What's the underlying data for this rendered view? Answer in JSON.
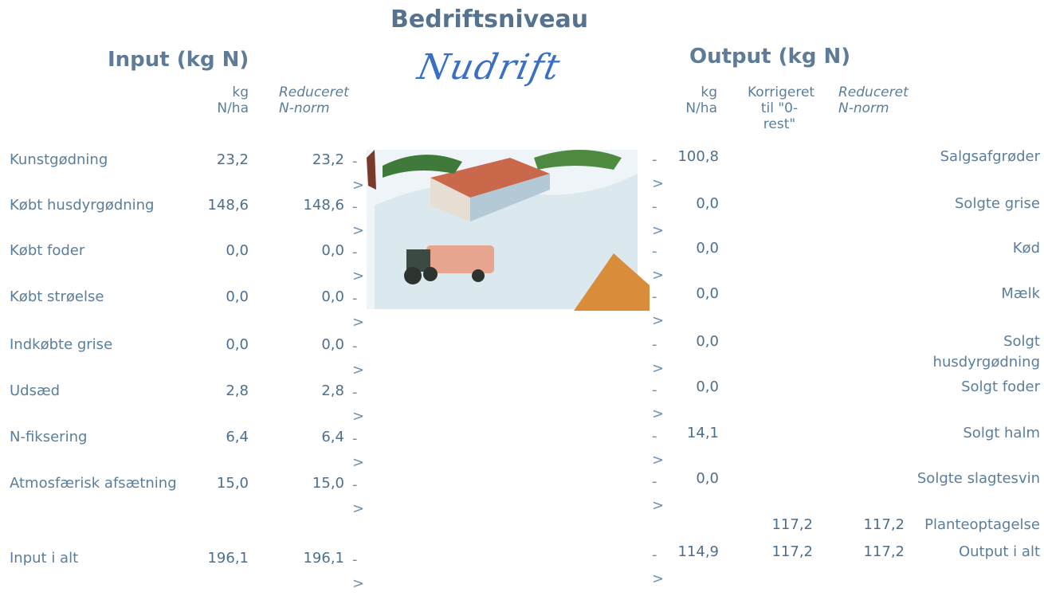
{
  "title": "Bedriftsniveau",
  "subtitle": "Nudrift",
  "arrow": "->",
  "input": {
    "heading": "Input (kg N)",
    "columns": [
      "kg N/ha",
      "Reduceret N-norm"
    ],
    "rows": [
      {
        "label": "Kunstgødning",
        "per_ha": "23,2",
        "reduced": "23,2"
      },
      {
        "label": "Købt husdyrgødning",
        "per_ha": "148,6",
        "reduced": "148,6"
      },
      {
        "label": "Købt foder",
        "per_ha": "0,0",
        "reduced": "0,0"
      },
      {
        "label": "Købt strøelse",
        "per_ha": "0,0",
        "reduced": "0,0"
      },
      {
        "label": "Indkøbte grise",
        "per_ha": "0,0",
        "reduced": "0,0"
      },
      {
        "label": "Udsæd",
        "per_ha": "2,8",
        "reduced": "2,8"
      },
      {
        "label": "N-fiksering",
        "per_ha": "6,4",
        "reduced": "6,4"
      },
      {
        "label": "Atmosfærisk afsætning",
        "per_ha": "15,0",
        "reduced": "15,0"
      }
    ],
    "total": {
      "label": "Input i alt",
      "per_ha": "196,1",
      "reduced": "196,1"
    }
  },
  "output": {
    "heading": "Output (kg N)",
    "columns": [
      "kg N/ha",
      "Korrigeret til \"0-rest\"",
      "Reduceret N-norm"
    ],
    "rows": [
      {
        "label": "Salgsafgrøder",
        "per_ha": "100,8"
      },
      {
        "label": "Solgte grise",
        "per_ha": "0,0"
      },
      {
        "label": "Kød",
        "per_ha": "0,0"
      },
      {
        "label": "Mælk",
        "per_ha": "0,0"
      },
      {
        "label": "Solgt husdyrgødning",
        "per_ha": "0,0"
      },
      {
        "label": "Solgt foder",
        "per_ha": "0,0"
      },
      {
        "label": "Solgt halm",
        "per_ha": "14,1"
      },
      {
        "label": "Solgte slagtesvin",
        "per_ha": "0,0"
      }
    ],
    "uptake": {
      "label": "Planteoptagelse",
      "corrected": "117,2",
      "reduced": "117,2"
    },
    "total": {
      "label": "Output i alt",
      "per_ha": "114,9",
      "corrected": "117,2",
      "reduced": "117,2"
    }
  }
}
